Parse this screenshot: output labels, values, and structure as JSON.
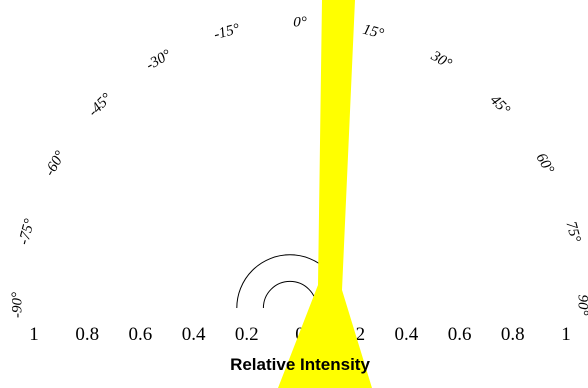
{
  "chart_data": {
    "type": "polar-radiation-pattern",
    "angle_labels": [
      "-90°",
      "-75°",
      "-60°",
      "-45°",
      "-30°",
      "-15°",
      "0°",
      "15°",
      "30°",
      "45°",
      "60°",
      "75°",
      "90°"
    ],
    "angles_deg": [
      -90,
      -75,
      -60,
      -45,
      -30,
      -15,
      0,
      15,
      30,
      45,
      60,
      75,
      90
    ],
    "radial_tick_labels": [
      "1",
      "0.8",
      "0.6",
      "0.4",
      "0.2",
      "0",
      "0.2",
      "0.4",
      "0.6",
      "0.8",
      "1"
    ],
    "radial_ticks": [
      1,
      0.8,
      0.6,
      0.4,
      0.2,
      0,
      0.2,
      0.4,
      0.6,
      0.8,
      1
    ],
    "xlabel": "Relative Intensity",
    "rlim": [
      0,
      1
    ],
    "arcs_radius": [
      0.2,
      0.1
    ],
    "highlight_color": "#FFFF00",
    "line_color": "#000000"
  }
}
